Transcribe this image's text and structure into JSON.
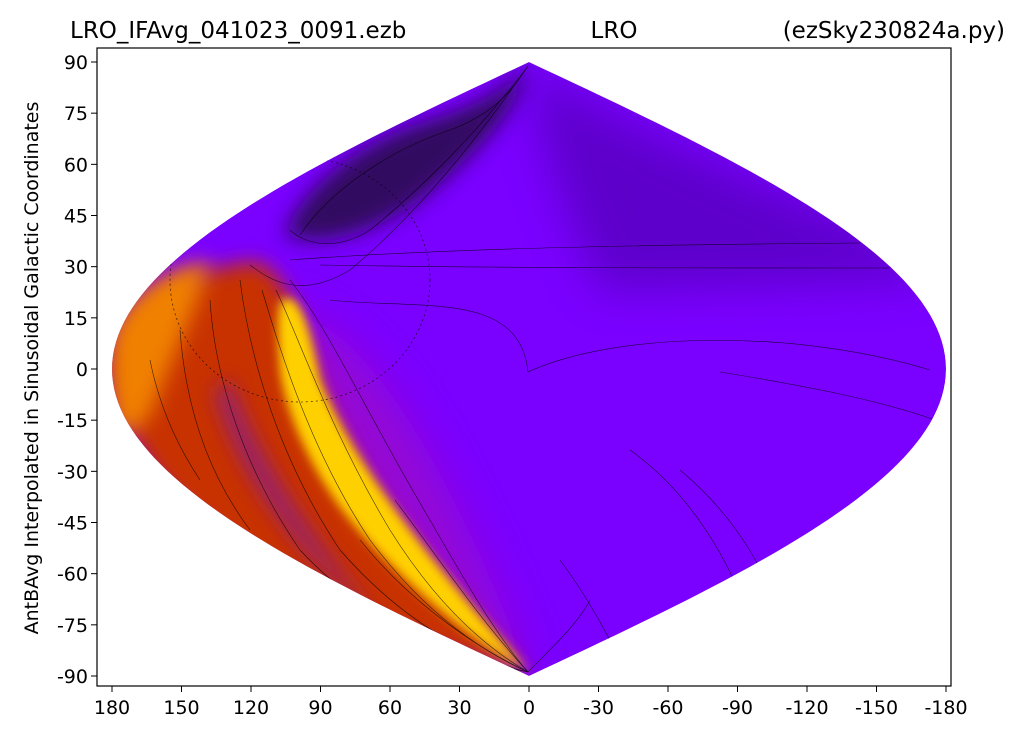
{
  "titles": {
    "left": "LRO_IFAvg_041023_0091.ezb",
    "center": "LRO",
    "right": "(ezSky230824a.py)"
  },
  "colors": {
    "background": "#7a00ff",
    "bright_band": "#ffd400",
    "warm_region": "#c83000",
    "dark_lobe": "#2a0a50",
    "contour": "#000000"
  },
  "chart_data": {
    "type": "heatmap",
    "projection": "sinusoidal",
    "title": "LRO_IFAvg_041023_0091.ezb          LRO          (ezSky230824a.py)",
    "xlabel": "",
    "ylabel": "AntBAvg Interpolated in Sinusoidal Galactic Coordinates",
    "xlim": [
      180,
      -180
    ],
    "ylim": [
      -90,
      90
    ],
    "xticks": [
      180,
      150,
      120,
      90,
      60,
      30,
      0,
      -30,
      -60,
      -90,
      -120,
      -150,
      -180
    ],
    "xtick_labels": [
      "180",
      "150",
      "120",
      "90",
      "60",
      "30",
      "0",
      "-30",
      "-60",
      "-90",
      "-120",
      "-150",
      "-180"
    ],
    "yticks": [
      90,
      75,
      60,
      45,
      30,
      15,
      0,
      -15,
      -30,
      -45,
      -60,
      -75,
      -90
    ],
    "ytick_labels": [
      "90",
      "75",
      "60",
      "45",
      "30",
      "15",
      "0",
      "-15",
      "-30",
      "-45",
      "-60",
      "-75",
      "-90"
    ],
    "grid": false,
    "colormap": "gnuplot"
  }
}
